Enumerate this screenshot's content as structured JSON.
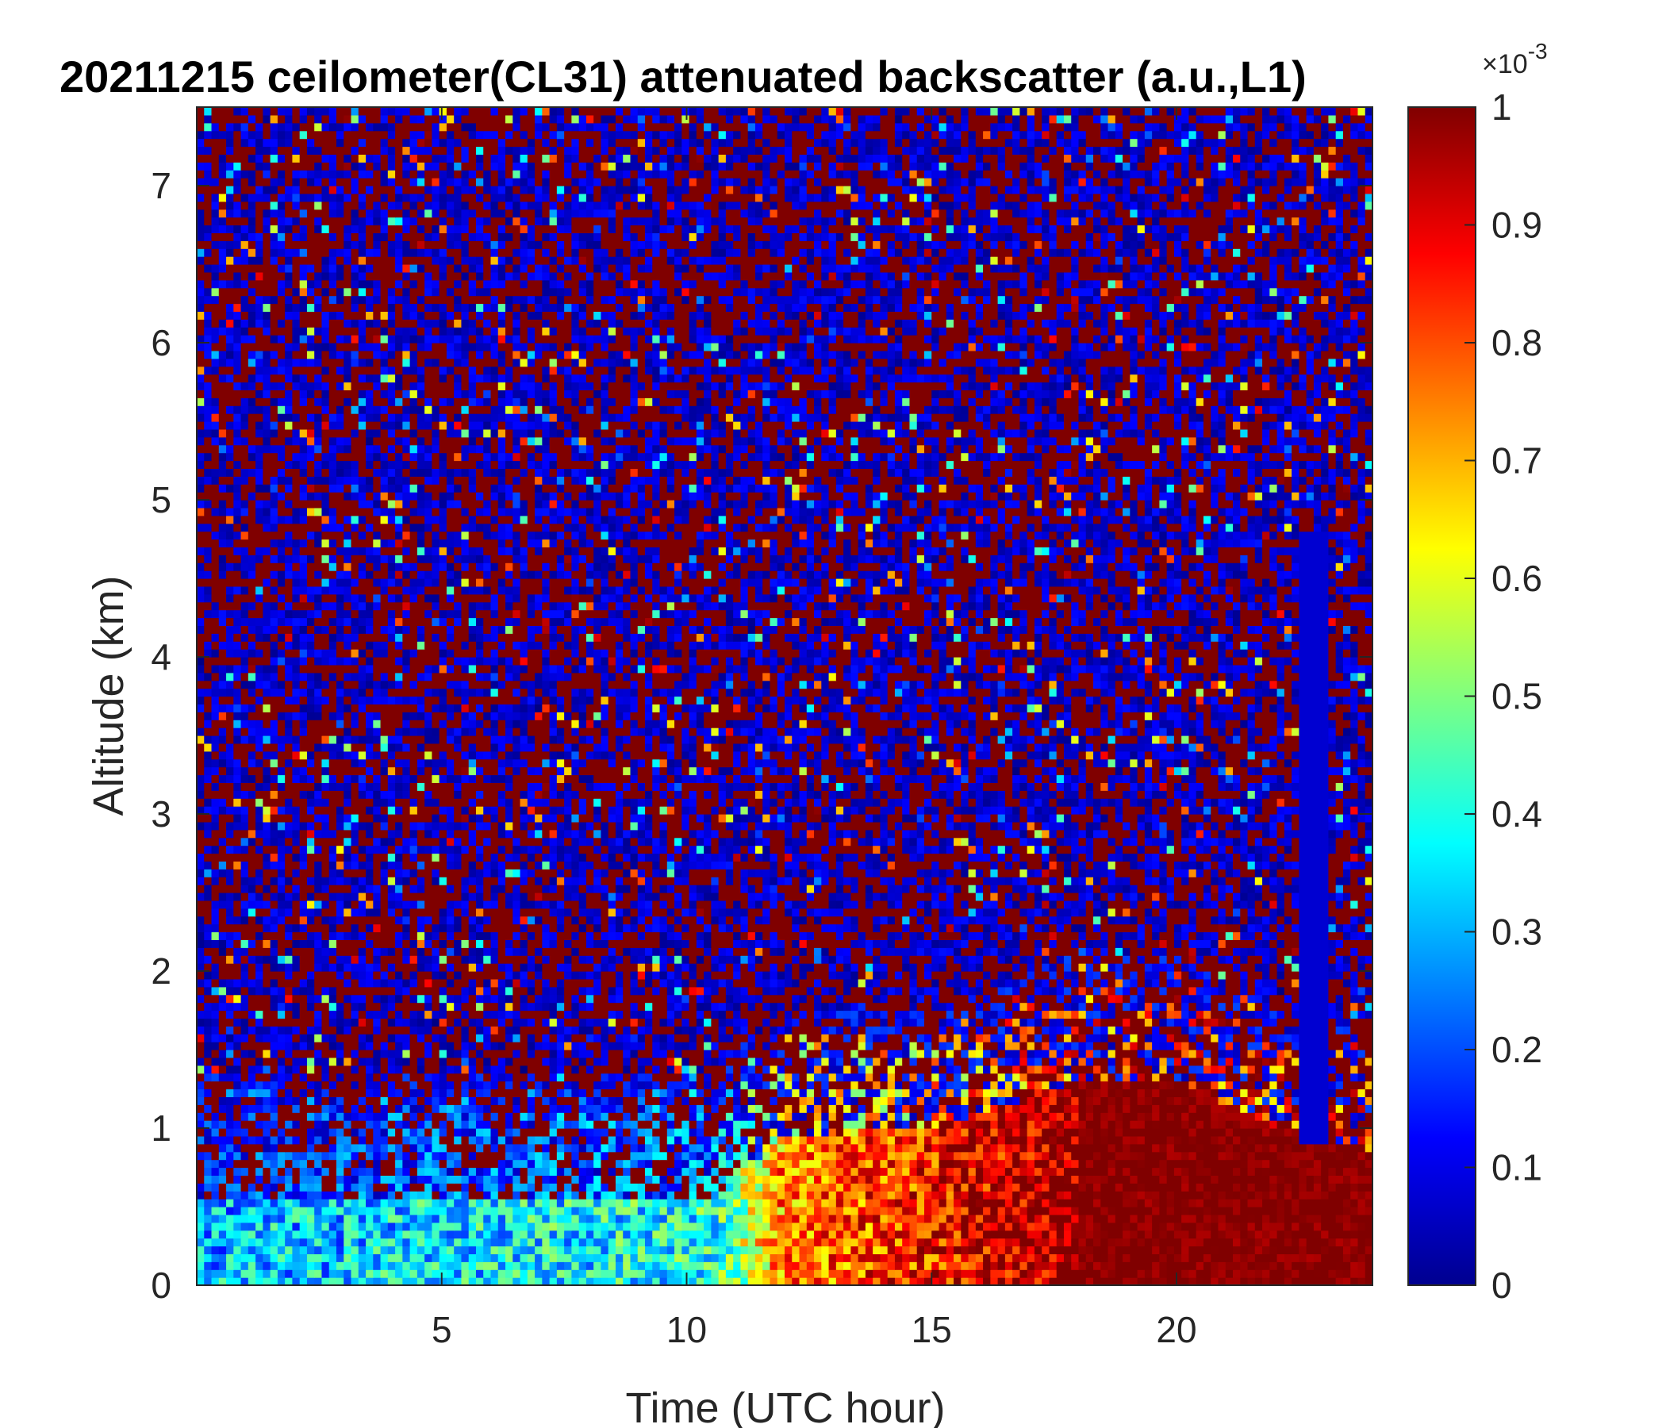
{
  "chart_data": {
    "type": "heatmap",
    "title": "20211215 ceilometer(CL31) attenuated backscatter (a.u.,L1)",
    "xlabel": "Time (UTC hour)",
    "ylabel": "Altitude (km)",
    "xlim": [
      0,
      24
    ],
    "ylim": [
      0,
      7.5
    ],
    "x_ticks": [
      5,
      10,
      15,
      20
    ],
    "y_ticks": [
      0,
      1,
      2,
      3,
      4,
      5,
      6,
      7
    ],
    "colorbar": {
      "label_exponent": "×10",
      "label_exponent_power": "-3",
      "range": [
        0,
        1
      ],
      "ticks": [
        0,
        0.1,
        0.2,
        0.3,
        0.4,
        0.5,
        0.6,
        0.7,
        0.8,
        0.9,
        1
      ],
      "tick_labels": [
        "0",
        "0.1",
        "0.2",
        "0.3",
        "0.4",
        "0.5",
        "0.6",
        "0.7",
        "0.8",
        "0.9",
        "1"
      ],
      "colormap": "jet"
    },
    "grid": false,
    "approximate_features": {
      "aerosol_layer_top_km": [
        {
          "time": 0,
          "top": 0.55,
          "level": 0.3
        },
        {
          "time": 10.5,
          "top": 0.55,
          "level": 0.4
        },
        {
          "time": 12,
          "top": 0.95,
          "level": 0.75
        },
        {
          "time": 15,
          "top": 1.0,
          "level": 0.85
        },
        {
          "time": 18,
          "top": 1.3,
          "level": 1.0
        },
        {
          "time": 20,
          "top": 1.3,
          "level": 1.0
        },
        {
          "time": 22.5,
          "top": 0.95,
          "level": 1.0
        },
        {
          "time": 24,
          "top": 0.85,
          "level": 1.0
        }
      ],
      "vertical_low_signal_stripe_hour": 22.8,
      "upper_background": "noise"
    }
  }
}
